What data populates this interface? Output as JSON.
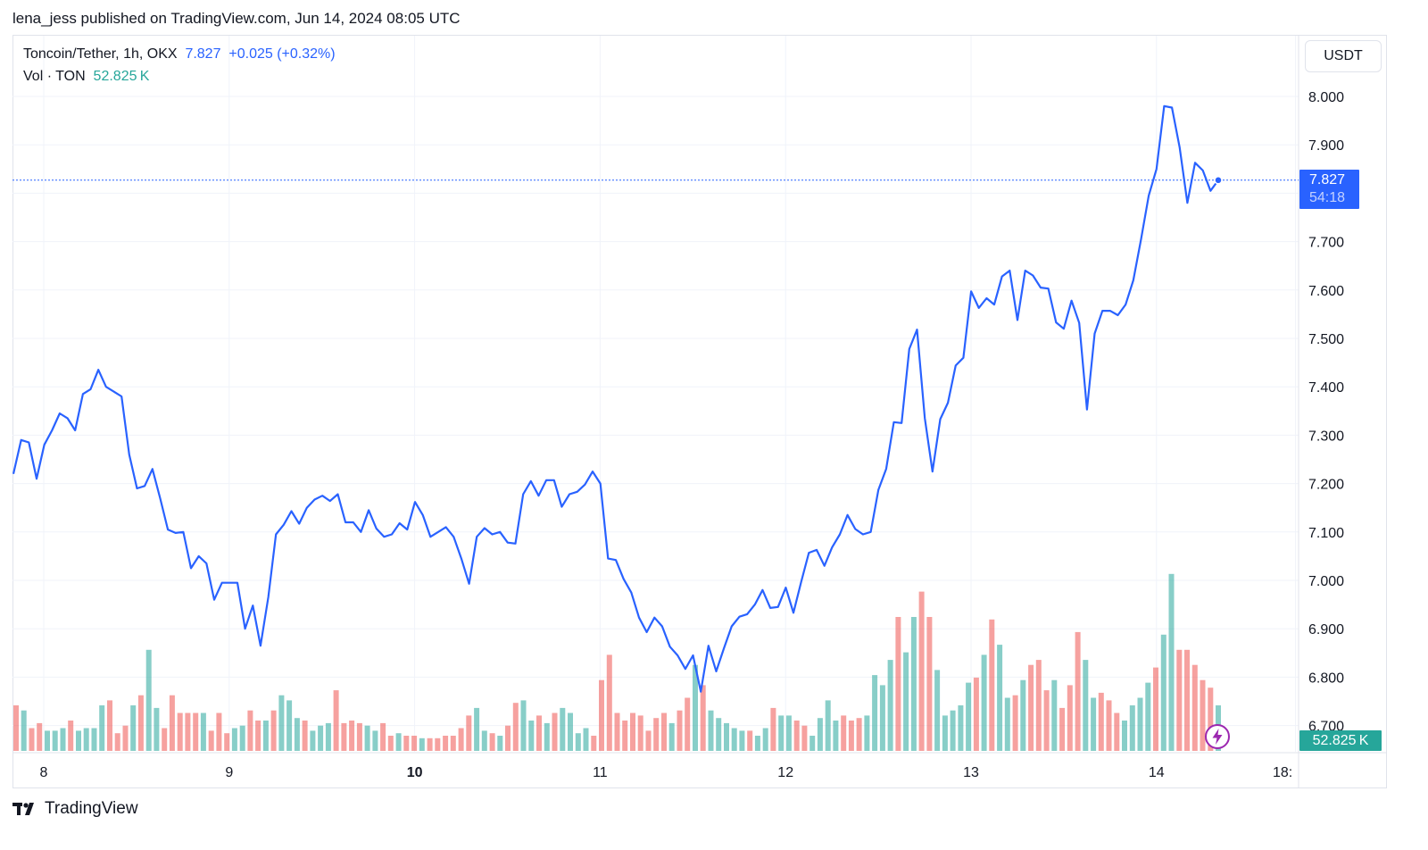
{
  "header": {
    "published_caption": "lena_jess published on TradingView.com, Jun 14, 2024 08:05 UTC"
  },
  "legend": {
    "symbol": "Toncoin/Tether, 1h, OKX",
    "last_price": "7.827",
    "change": "+0.025 (+0.32%)",
    "volume_label": "Vol · TON",
    "volume_value": "52.825 K"
  },
  "scale": {
    "currency": "USDT",
    "price_tag": "7.827",
    "countdown": "54:18",
    "volume_tag": "52.825 K"
  },
  "footer": {
    "brand": "TradingView"
  },
  "colors": {
    "line": "#2962ff",
    "vol_up": "#26a69a",
    "vol_down": "#ef5350",
    "grid": "#f0f3fa",
    "bolt": "#9c27b0"
  },
  "icons": {
    "footer": "tradingview-logo-icon",
    "badge": "lightning-bolt-icon"
  },
  "chart_data": {
    "type": "line",
    "title": "Toncoin/Tether, 1h, OKX",
    "ylim": [
      6.65,
      8.07
    ],
    "y_ticks": [
      "8.000",
      "7.900",
      "7.800",
      "7.700",
      "7.600",
      "7.500",
      "7.400",
      "7.300",
      "7.200",
      "7.100",
      "7.000",
      "6.900",
      "6.800",
      "6.700"
    ],
    "x_start_day": 7.85,
    "x_end_day": 14.75,
    "x_ticks": [
      {
        "label": "8",
        "day": 8,
        "bold": false
      },
      {
        "label": "9",
        "day": 9,
        "bold": false
      },
      {
        "label": "10",
        "day": 10,
        "bold": true
      },
      {
        "label": "11",
        "day": 11,
        "bold": false
      },
      {
        "label": "12",
        "day": 12,
        "bold": false
      },
      {
        "label": "13",
        "day": 13,
        "bold": false
      },
      {
        "label": "14",
        "day": 14,
        "bold": false
      },
      {
        "label": "18:",
        "day": 14.75,
        "bold": false
      }
    ],
    "price_line_value": 7.827,
    "series": [
      {
        "values": [
          7.22,
          7.29,
          7.285,
          7.21,
          7.28,
          7.31,
          7.345,
          7.335,
          7.31,
          7.385,
          7.395,
          7.435,
          7.4,
          7.39,
          7.38,
          7.26,
          7.19,
          7.195,
          7.23,
          7.17,
          7.105,
          7.098,
          7.1,
          7.025,
          7.05,
          7.035,
          6.96,
          6.995,
          6.995,
          6.995,
          6.9,
          6.948,
          6.865,
          6.965,
          7.095,
          7.115,
          7.143,
          7.117,
          7.15,
          7.167,
          7.175,
          7.164,
          7.178,
          7.12,
          7.12,
          7.1,
          7.145,
          7.107,
          7.09,
          7.095,
          7.118,
          7.105,
          7.162,
          7.135,
          7.09,
          7.1,
          7.11,
          7.09,
          7.045,
          6.993,
          7.09,
          7.108,
          7.095,
          7.1,
          7.078,
          7.076,
          7.178,
          7.205,
          7.175,
          7.207,
          7.207,
          7.152,
          7.178,
          7.183,
          7.198,
          7.225,
          7.2,
          7.045,
          7.042,
          7.003,
          6.975,
          6.923,
          6.893,
          6.923,
          6.905,
          6.863,
          6.845,
          6.817,
          6.845,
          6.77,
          6.865,
          6.812,
          6.86,
          6.905,
          6.925,
          6.93,
          6.95,
          6.98,
          6.943,
          6.945,
          6.985,
          6.933,
          6.997,
          7.057,
          7.063,
          7.03,
          7.068,
          7.095,
          7.135,
          7.106,
          7.095,
          7.1,
          7.187,
          7.23,
          7.327,
          7.325,
          7.478,
          7.518,
          7.335,
          7.225,
          7.333,
          7.367,
          7.444,
          7.46,
          7.597,
          7.563,
          7.583,
          7.57,
          7.628,
          7.64,
          7.538,
          7.64,
          7.63,
          7.605,
          7.603,
          7.533,
          7.52,
          7.578,
          7.532,
          7.353,
          7.51,
          7.557,
          7.557,
          7.548,
          7.57,
          7.62,
          7.705,
          7.795,
          7.85,
          7.98,
          7.977,
          7.895,
          7.78,
          7.863,
          7.847,
          7.805,
          7.827
        ]
      }
    ],
    "volume": {
      "label": "Vol · TON",
      "last": "52.825 K",
      "max": 71,
      "bars": [
        {
          "v": 18,
          "up": false
        },
        {
          "v": 16,
          "up": true
        },
        {
          "v": 9,
          "up": false
        },
        {
          "v": 11,
          "up": false
        },
        {
          "v": 8,
          "up": true
        },
        {
          "v": 8,
          "up": true
        },
        {
          "v": 9,
          "up": true
        },
        {
          "v": 12,
          "up": false
        },
        {
          "v": 8,
          "up": true
        },
        {
          "v": 9,
          "up": true
        },
        {
          "v": 9,
          "up": true
        },
        {
          "v": 18,
          "up": true
        },
        {
          "v": 20,
          "up": false
        },
        {
          "v": 7,
          "up": false
        },
        {
          "v": 10,
          "up": false
        },
        {
          "v": 18,
          "up": true
        },
        {
          "v": 22,
          "up": false
        },
        {
          "v": 40,
          "up": true
        },
        {
          "v": 17,
          "up": true
        },
        {
          "v": 9,
          "up": false
        },
        {
          "v": 22,
          "up": false
        },
        {
          "v": 15,
          "up": false
        },
        {
          "v": 15,
          "up": false
        },
        {
          "v": 15,
          "up": false
        },
        {
          "v": 15,
          "up": true
        },
        {
          "v": 8,
          "up": false
        },
        {
          "v": 15,
          "up": false
        },
        {
          "v": 7,
          "up": false
        },
        {
          "v": 9,
          "up": true
        },
        {
          "v": 10,
          "up": true
        },
        {
          "v": 16,
          "up": false
        },
        {
          "v": 12,
          "up": false
        },
        {
          "v": 12,
          "up": true
        },
        {
          "v": 16,
          "up": false
        },
        {
          "v": 22,
          "up": true
        },
        {
          "v": 20,
          "up": true
        },
        {
          "v": 13,
          "up": true
        },
        {
          "v": 12,
          "up": false
        },
        {
          "v": 8,
          "up": true
        },
        {
          "v": 10,
          "up": true
        },
        {
          "v": 11,
          "up": true
        },
        {
          "v": 24,
          "up": false
        },
        {
          "v": 11,
          "up": false
        },
        {
          "v": 12,
          "up": false
        },
        {
          "v": 11,
          "up": false
        },
        {
          "v": 10,
          "up": true
        },
        {
          "v": 8,
          "up": true
        },
        {
          "v": 11,
          "up": false
        },
        {
          "v": 6,
          "up": false
        },
        {
          "v": 7,
          "up": true
        },
        {
          "v": 6,
          "up": false
        },
        {
          "v": 6,
          "up": false
        },
        {
          "v": 5,
          "up": true
        },
        {
          "v": 5,
          "up": false
        },
        {
          "v": 5,
          "up": false
        },
        {
          "v": 6,
          "up": false
        },
        {
          "v": 6,
          "up": false
        },
        {
          "v": 9,
          "up": false
        },
        {
          "v": 14,
          "up": false
        },
        {
          "v": 17,
          "up": true
        },
        {
          "v": 8,
          "up": true
        },
        {
          "v": 7,
          "up": false
        },
        {
          "v": 6,
          "up": true
        },
        {
          "v": 10,
          "up": false
        },
        {
          "v": 19,
          "up": false
        },
        {
          "v": 20,
          "up": true
        },
        {
          "v": 12,
          "up": true
        },
        {
          "v": 14,
          "up": false
        },
        {
          "v": 11,
          "up": true
        },
        {
          "v": 15,
          "up": false
        },
        {
          "v": 17,
          "up": true
        },
        {
          "v": 15,
          "up": true
        },
        {
          "v": 7,
          "up": true
        },
        {
          "v": 9,
          "up": true
        },
        {
          "v": 6,
          "up": false
        },
        {
          "v": 28,
          "up": false
        },
        {
          "v": 38,
          "up": false
        },
        {
          "v": 15,
          "up": false
        },
        {
          "v": 12,
          "up": false
        },
        {
          "v": 15,
          "up": false
        },
        {
          "v": 14,
          "up": false
        },
        {
          "v": 8,
          "up": false
        },
        {
          "v": 13,
          "up": false
        },
        {
          "v": 15,
          "up": false
        },
        {
          "v": 11,
          "up": true
        },
        {
          "v": 16,
          "up": false
        },
        {
          "v": 21,
          "up": false
        },
        {
          "v": 34,
          "up": true
        },
        {
          "v": 26,
          "up": false
        },
        {
          "v": 16,
          "up": true
        },
        {
          "v": 13,
          "up": true
        },
        {
          "v": 11,
          "up": true
        },
        {
          "v": 9,
          "up": true
        },
        {
          "v": 8,
          "up": true
        },
        {
          "v": 8,
          "up": false
        },
        {
          "v": 6,
          "up": true
        },
        {
          "v": 9,
          "up": true
        },
        {
          "v": 17,
          "up": false
        },
        {
          "v": 14,
          "up": true
        },
        {
          "v": 14,
          "up": true
        },
        {
          "v": 12,
          "up": false
        },
        {
          "v": 10,
          "up": false
        },
        {
          "v": 6,
          "up": true
        },
        {
          "v": 13,
          "up": true
        },
        {
          "v": 20,
          "up": true
        },
        {
          "v": 12,
          "up": true
        },
        {
          "v": 14,
          "up": false
        },
        {
          "v": 12,
          "up": false
        },
        {
          "v": 13,
          "up": false
        },
        {
          "v": 14,
          "up": true
        },
        {
          "v": 30,
          "up": true
        },
        {
          "v": 26,
          "up": true
        },
        {
          "v": 36,
          "up": true
        },
        {
          "v": 53,
          "up": false
        },
        {
          "v": 39,
          "up": true
        },
        {
          "v": 53,
          "up": true
        },
        {
          "v": 63,
          "up": false
        },
        {
          "v": 53,
          "up": false
        },
        {
          "v": 32,
          "up": true
        },
        {
          "v": 14,
          "up": true
        },
        {
          "v": 16,
          "up": true
        },
        {
          "v": 18,
          "up": true
        },
        {
          "v": 27,
          "up": true
        },
        {
          "v": 29,
          "up": false
        },
        {
          "v": 38,
          "up": true
        },
        {
          "v": 52,
          "up": false
        },
        {
          "v": 42,
          "up": true
        },
        {
          "v": 21,
          "up": true
        },
        {
          "v": 22,
          "up": false
        },
        {
          "v": 28,
          "up": true
        },
        {
          "v": 34,
          "up": false
        },
        {
          "v": 36,
          "up": false
        },
        {
          "v": 24,
          "up": false
        },
        {
          "v": 28,
          "up": true
        },
        {
          "v": 17,
          "up": false
        },
        {
          "v": 26,
          "up": false
        },
        {
          "v": 47,
          "up": false
        },
        {
          "v": 36,
          "up": true
        },
        {
          "v": 21,
          "up": true
        },
        {
          "v": 23,
          "up": false
        },
        {
          "v": 20,
          "up": false
        },
        {
          "v": 15,
          "up": false
        },
        {
          "v": 12,
          "up": true
        },
        {
          "v": 18,
          "up": true
        },
        {
          "v": 21,
          "up": true
        },
        {
          "v": 27,
          "up": true
        },
        {
          "v": 33,
          "up": false
        },
        {
          "v": 46,
          "up": true
        },
        {
          "v": 70,
          "up": true
        },
        {
          "v": 40,
          "up": false
        },
        {
          "v": 40,
          "up": false
        },
        {
          "v": 34,
          "up": false
        },
        {
          "v": 28,
          "up": false
        },
        {
          "v": 25,
          "up": false
        },
        {
          "v": 18,
          "up": true
        }
      ]
    }
  }
}
